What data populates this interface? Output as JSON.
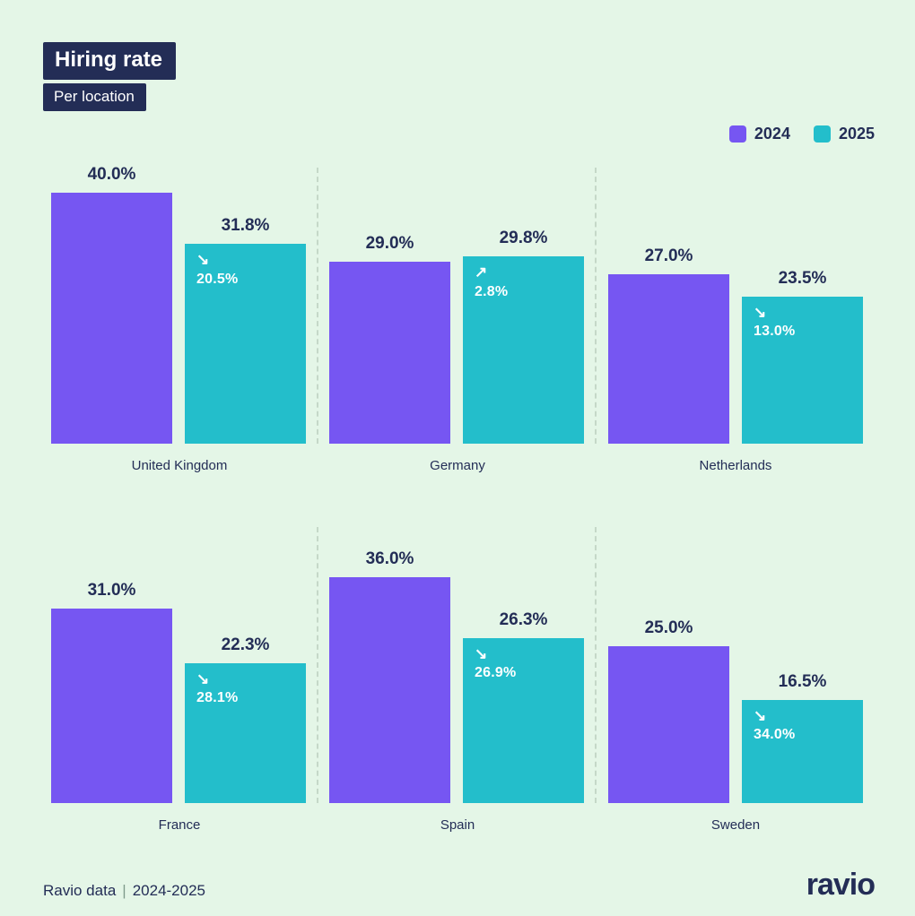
{
  "colors": {
    "background": "#e4f6e7",
    "navy": "#232d56",
    "purple_2024": "#7656f2",
    "teal_2025": "#23becb",
    "divider": "#c5d8c8"
  },
  "header": {
    "title": "Hiring rate",
    "subtitle": "Per location"
  },
  "legend": [
    {
      "label": "2024",
      "color": "#7656f2"
    },
    {
      "label": "2025",
      "color": "#23becb"
    }
  ],
  "chart_data": {
    "type": "bar",
    "unit": "%",
    "series": [
      "2024",
      "2025"
    ],
    "ylim": [
      0,
      40
    ],
    "grid": false,
    "legend_position": "top-right",
    "groups": [
      {
        "location": "United Kingdom",
        "value_2024": 40.0,
        "value_2025": 31.8,
        "change_label": "20.5%",
        "change_direction": "down"
      },
      {
        "location": "Germany",
        "value_2024": 29.0,
        "value_2025": 29.8,
        "change_label": "2.8%",
        "change_direction": "up"
      },
      {
        "location": "Netherlands",
        "value_2024": 27.0,
        "value_2025": 23.5,
        "change_label": "13.0%",
        "change_direction": "down"
      },
      {
        "location": "France",
        "value_2024": 31.0,
        "value_2025": 22.3,
        "change_label": "28.1%",
        "change_direction": "down"
      },
      {
        "location": "Spain",
        "value_2024": 36.0,
        "value_2025": 26.3,
        "change_label": "26.9%",
        "change_direction": "down"
      },
      {
        "location": "Sweden",
        "value_2024": 25.0,
        "value_2025": 16.5,
        "change_label": "34.0%",
        "change_direction": "down"
      }
    ],
    "icons": {
      "down": "↘",
      "up": "↗"
    }
  },
  "footer": {
    "source": "Ravio data",
    "separator": "|",
    "period": "2024-2025",
    "logo": "ravio"
  }
}
